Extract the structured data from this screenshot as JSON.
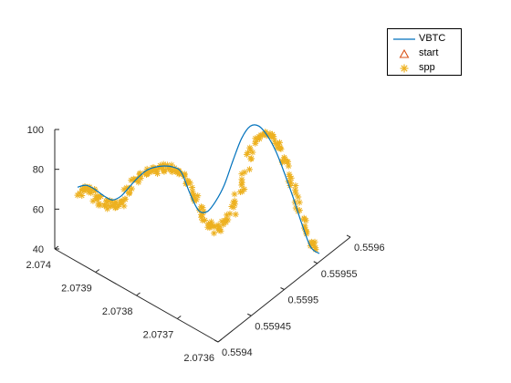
{
  "chart_data": {
    "type": "line3d",
    "title": "",
    "xlabel": "",
    "ylabel": "",
    "zlabel": "",
    "x_range": [
      0.5594,
      0.5596
    ],
    "y_range": [
      2.0736,
      2.074
    ],
    "z_range": [
      40,
      100
    ],
    "x_ticks": [
      "0.5594",
      "0.55945",
      "0.5595",
      "0.55955",
      "0.5596"
    ],
    "y_ticks": [
      "2.0736",
      "2.0737",
      "2.0738",
      "2.0739",
      "2.074"
    ],
    "z_ticks": [
      "40",
      "60",
      "80",
      "100"
    ],
    "grid": false,
    "legend_position": "top-right",
    "colors": {
      "VBTC": "#0072BD",
      "start": "#D95319",
      "spp": "#EDB120",
      "axis": "#262626"
    },
    "series": [
      {
        "name": "VBTC",
        "marker": "line",
        "z": [
          71,
          72,
          70,
          67,
          65,
          67,
          72,
          77,
          81,
          83,
          84,
          84,
          82,
          72,
          64,
          64,
          70,
          79,
          92,
          104,
          111,
          112,
          108,
          101,
          91,
          80,
          68,
          58,
          56
        ]
      },
      {
        "name": "start",
        "marker": "triangle",
        "z": []
      },
      {
        "name": "spp",
        "marker": "asterisk",
        "z": [
          68,
          70,
          66,
          63,
          62,
          64,
          70,
          76,
          79,
          81,
          83,
          84,
          82,
          75,
          66,
          57,
          55,
          58,
          68,
          82,
          98,
          107,
          108,
          105,
          97,
          86,
          73,
          62,
          57
        ]
      }
    ]
  }
}
